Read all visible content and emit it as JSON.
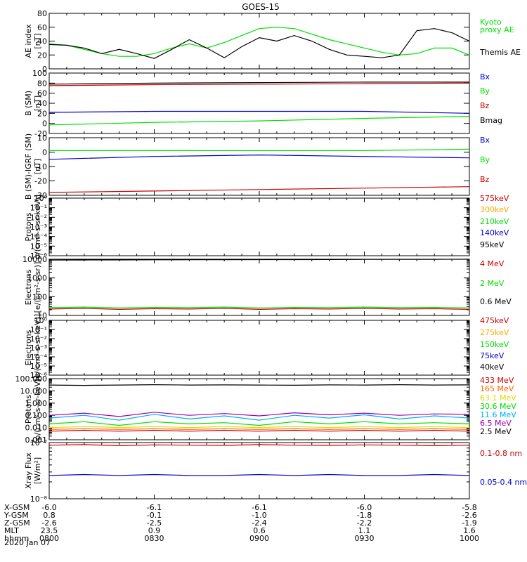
{
  "title": "GOES-15",
  "x_axis": {
    "ticks": [
      "0800",
      "0830",
      "0900",
      "0930",
      "1000"
    ],
    "rows": [
      {
        "label": "X-GSM",
        "values": [
          "-6.0",
          "-6.1",
          "-6.1",
          "-6.0",
          "-5.8"
        ]
      },
      {
        "label": "Y-GSM",
        "values": [
          "0.8",
          "-0.1",
          "-1.0",
          "-1.8",
          "-2.6"
        ]
      },
      {
        "label": "Z-GSM",
        "values": [
          "-2.6",
          "-2.5",
          "-2.4",
          "-2.2",
          "-1.9"
        ]
      },
      {
        "label": "MLT",
        "values": [
          "23.5",
          "0.9",
          "0.6",
          "1.1",
          "1.6"
        ]
      },
      {
        "label": "hhmm",
        "values": [
          "0800",
          "0830",
          "0900",
          "0930",
          "1000"
        ]
      }
    ],
    "date": "2020 Jan 07"
  },
  "colors": {
    "black": "#000000",
    "green": "#00e000",
    "blue": "#0000cc",
    "red": "#cc0000",
    "orange": "#ffaa00",
    "yellow": "#e6d800",
    "cyan": "#00aaff",
    "purple": "#9900aa"
  },
  "chart_data": [
    {
      "type": "line",
      "ylabel": [
        "AE index",
        "[nT]"
      ],
      "ylim": [
        0,
        80
      ],
      "yticks": [
        "80",
        "60",
        "40",
        "20",
        "0"
      ],
      "ytick_values": [
        80,
        60,
        40,
        20,
        0
      ],
      "x": [
        0,
        5,
        10,
        15,
        20,
        25,
        30,
        35,
        40,
        45,
        50,
        55,
        60,
        65,
        70,
        75,
        80,
        85,
        90,
        95,
        100,
        105,
        110,
        115,
        120
      ],
      "series": [
        {
          "name": "Kyoto proxy AE",
          "color": "#00e000",
          "values": [
            36,
            34,
            28,
            22,
            18,
            18,
            22,
            30,
            36,
            30,
            38,
            48,
            58,
            60,
            58,
            50,
            42,
            36,
            30,
            24,
            20,
            22,
            30,
            30,
            20
          ]
        },
        {
          "name": "Themis AE",
          "color": "#000000",
          "values": [
            35,
            34,
            30,
            22,
            28,
            22,
            15,
            28,
            42,
            30,
            16,
            32,
            45,
            40,
            48,
            40,
            28,
            20,
            18,
            16,
            20,
            55,
            58,
            52,
            40
          ]
        }
      ]
    },
    {
      "type": "line",
      "ylabel": [
        "B (SM)",
        "[nT]"
      ],
      "ylim": [
        -20,
        100
      ],
      "yticks": [
        "100",
        "80",
        "60",
        "40",
        "20",
        "0",
        "-20"
      ],
      "ytick_values": [
        100,
        80,
        60,
        40,
        20,
        0,
        -20
      ],
      "x": [
        0,
        30,
        60,
        90,
        120
      ],
      "series": [
        {
          "name": "Bx",
          "color": "#0000cc",
          "values": [
            22,
            24,
            24,
            24,
            20
          ]
        },
        {
          "name": "By",
          "color": "#00e000",
          "values": [
            -3,
            2,
            5,
            10,
            14
          ]
        },
        {
          "name": "Bz",
          "color": "#cc0000",
          "values": [
            75,
            77,
            78,
            79,
            80
          ]
        },
        {
          "name": "Bmag",
          "color": "#000000",
          "values": [
            78,
            80,
            81,
            82,
            82
          ]
        }
      ]
    },
    {
      "type": "line",
      "ylabel": [
        "B (SM)-IGRF (SM)",
        "[nT]"
      ],
      "ylim": [
        -30,
        10
      ],
      "yticks": [
        "10",
        "0",
        "-10",
        "-20",
        "-30"
      ],
      "ytick_values": [
        10,
        0,
        -10,
        -20,
        -30
      ],
      "x": [
        0,
        30,
        60,
        90,
        120
      ],
      "series": [
        {
          "name": "Bx",
          "color": "#0000cc",
          "values": [
            -5,
            -3,
            -2,
            -3,
            -4
          ]
        },
        {
          "name": "By",
          "color": "#00e000",
          "values": [
            1,
            1,
            1,
            1,
            2
          ]
        },
        {
          "name": "Bz",
          "color": "#cc0000",
          "values": [
            -28,
            -27,
            -26,
            -25,
            -24
          ]
        }
      ]
    },
    {
      "type": "line",
      "ylabel": [
        "Protons",
        "p/(cm²-s-sr-keV)]"
      ],
      "scale": "log",
      "ylim": [
        1e-06,
        1
      ],
      "yticks": [
        "10⁰",
        "10⁻¹",
        "10⁻²",
        "10⁻³",
        "10⁻⁴",
        "10⁻⁵",
        "10⁻⁶"
      ],
      "ytick_values": [
        1,
        0.1,
        0.01,
        0.001,
        0.0001,
        1e-05,
        1e-06
      ],
      "series": [
        {
          "name": "575keV",
          "color": "#cc0000"
        },
        {
          "name": "300keV",
          "color": "#ffaa00"
        },
        {
          "name": "210keV",
          "color": "#00e000"
        },
        {
          "name": "140keV",
          "color": "#0000cc"
        },
        {
          "name": "95keV",
          "color": "#000000"
        }
      ]
    },
    {
      "type": "line",
      "ylabel": [
        "Electrons",
        "[e/(cm²-s-sr)]"
      ],
      "scale": "log",
      "ylim": [
        10,
        10000
      ],
      "yticks": [
        "10000",
        "1000",
        "100",
        "10"
      ],
      "ytick_values": [
        10000,
        1000,
        100,
        10
      ],
      "x": [
        0,
        10,
        20,
        30,
        40,
        50,
        60,
        70,
        80,
        90,
        100,
        110,
        120
      ],
      "series": [
        {
          "name": "4 MeV",
          "color": "#cc0000",
          "values": [
            22,
            24,
            21,
            23,
            22,
            24,
            21,
            23,
            22,
            24,
            22,
            23,
            21
          ]
        },
        {
          "name": "2 MeV",
          "color": "#00e000",
          "values": [
            26,
            28,
            25,
            27,
            26,
            28,
            25,
            27,
            26,
            28,
            26,
            27,
            25
          ]
        },
        {
          "name": "0.6 MeV",
          "color": "#000000",
          "values": [
            9000,
            9100,
            9200,
            9300,
            9400,
            9500,
            9600,
            9600,
            9700,
            9800,
            9900,
            9900,
            10000
          ]
        }
      ]
    },
    {
      "type": "line",
      "ylabel": [
        "Electrons",
        "[e/(cm²-s-sr-keV)]"
      ],
      "scale": "log",
      "ylim": [
        1e-06,
        1
      ],
      "yticks": [
        "10⁰",
        "10⁻¹",
        "10⁻²",
        "10⁻³",
        "10⁻⁴",
        "10⁻⁵",
        "10⁻⁶"
      ],
      "ytick_values": [
        1,
        0.1,
        0.01,
        0.001,
        0.0001,
        1e-05,
        1e-06
      ],
      "series": [
        {
          "name": "475keV",
          "color": "#cc0000"
        },
        {
          "name": "275keV",
          "color": "#ffaa00"
        },
        {
          "name": "150keV",
          "color": "#00e000"
        },
        {
          "name": "75keV",
          "color": "#0000cc"
        },
        {
          "name": "40keV",
          "color": "#000000"
        }
      ]
    },
    {
      "type": "line",
      "ylabel": [
        "Protons",
        "[p/(cm²-s-sr-keV)]"
      ],
      "scale": "log",
      "ylim": [
        0.001,
        100
      ],
      "yticks": [
        "100.000",
        "10.000",
        "1.000",
        "0.100",
        "0.010",
        "0.001"
      ],
      "ytick_values": [
        100,
        10,
        1,
        0.1,
        0.01,
        0.001
      ],
      "x": [
        0,
        10,
        20,
        30,
        40,
        50,
        60,
        70,
        80,
        90,
        100,
        110,
        120
      ],
      "series": [
        {
          "name": "433 MeV",
          "color": "#cc0000",
          "values": [
            0.005,
            0.006,
            0.005,
            0.006,
            0.005,
            0.006,
            0.005,
            0.006,
            0.005,
            0.006,
            0.005,
            0.006,
            0.005
          ]
        },
        {
          "name": "165 MeV",
          "color": "#ff6600",
          "values": [
            0.007,
            0.008,
            0.007,
            0.008,
            0.007,
            0.008,
            0.007,
            0.008,
            0.007,
            0.008,
            0.007,
            0.008,
            0.007
          ]
        },
        {
          "name": "63.1 MeV",
          "color": "#e6d800",
          "values": [
            0.01,
            0.012,
            0.01,
            0.012,
            0.01,
            0.012,
            0.01,
            0.012,
            0.01,
            0.012,
            0.01,
            0.012,
            0.01
          ]
        },
        {
          "name": "30.6 MeV",
          "color": "#00e000",
          "values": [
            0.02,
            0.03,
            0.015,
            0.03,
            0.02,
            0.025,
            0.015,
            0.03,
            0.02,
            0.03,
            0.02,
            0.025,
            0.02
          ]
        },
        {
          "name": "11.6 MeV",
          "color": "#00aaff",
          "values": [
            0.06,
            0.1,
            0.04,
            0.12,
            0.05,
            0.09,
            0.04,
            0.1,
            0.06,
            0.11,
            0.05,
            0.09,
            0.06
          ]
        },
        {
          "name": "6.5 MeV",
          "color": "#9900aa",
          "values": [
            0.1,
            0.15,
            0.08,
            0.18,
            0.1,
            0.14,
            0.09,
            0.16,
            0.11,
            0.15,
            0.1,
            0.13,
            0.12
          ]
        },
        {
          "name": "2.5 MeV",
          "color": "#000000",
          "values": [
            30,
            28,
            30,
            32,
            30,
            31,
            30,
            29,
            31,
            30,
            32,
            30,
            31
          ]
        }
      ]
    },
    {
      "type": "line",
      "ylabel": [
        "Xray Flux",
        "[W/m²]"
      ],
      "scale": "log",
      "ylim": [
        1e-08,
        1e-07
      ],
      "yticks": [
        "10⁻⁷",
        "10⁻⁸"
      ],
      "ytick_values": [
        1e-07,
        1e-08
      ],
      "x": [
        0,
        10,
        20,
        30,
        40,
        50,
        60,
        70,
        80,
        90,
        100,
        110,
        120
      ],
      "series": [
        {
          "name": "0.1-0.8 nm",
          "color": "#cc0000",
          "values": [
            9e-08,
            9.2e-08,
            8.8e-08,
            9.1e-08,
            9e-08,
            8.9e-08,
            9.2e-08,
            9e-08,
            8.9e-08,
            9.1e-08,
            9e-08,
            8.8e-08,
            9e-08
          ]
        },
        {
          "name": "0.05-0.4 nm",
          "color": "#0000cc",
          "values": [
            2.6e-08,
            2.7e-08,
            2.6e-08,
            2.7e-08,
            2.6e-08,
            2.6e-08,
            2.7e-08,
            2.6e-08,
            2.7e-08,
            2.6e-08,
            2.6e-08,
            2.7e-08,
            2.6e-08
          ]
        }
      ]
    }
  ]
}
